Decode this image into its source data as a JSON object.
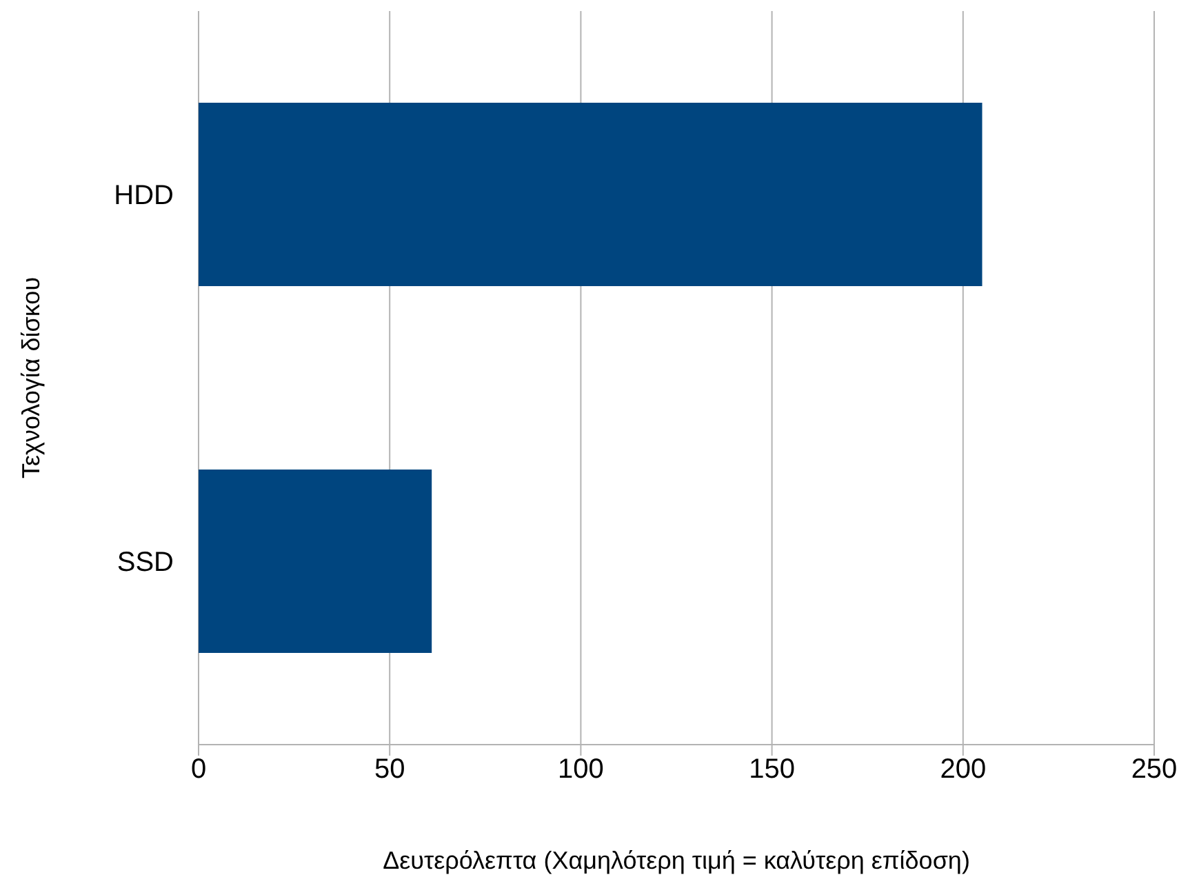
{
  "chart_data": {
    "type": "bar",
    "orientation": "horizontal",
    "xlabel": "Δευτερόλεπτα (Χαμηλότερη τιμή = καλύτερη επίδοση)",
    "ylabel": "Τεχνολογία δίσκου",
    "categories": [
      "HDD",
      "SSD"
    ],
    "series": [
      {
        "color": "#00457f",
        "values": [
          205,
          61
        ]
      }
    ],
    "xlim": [
      0,
      250
    ],
    "xticks": [
      0,
      50,
      100,
      150,
      200,
      250
    ],
    "grid": "x",
    "legend": false
  }
}
